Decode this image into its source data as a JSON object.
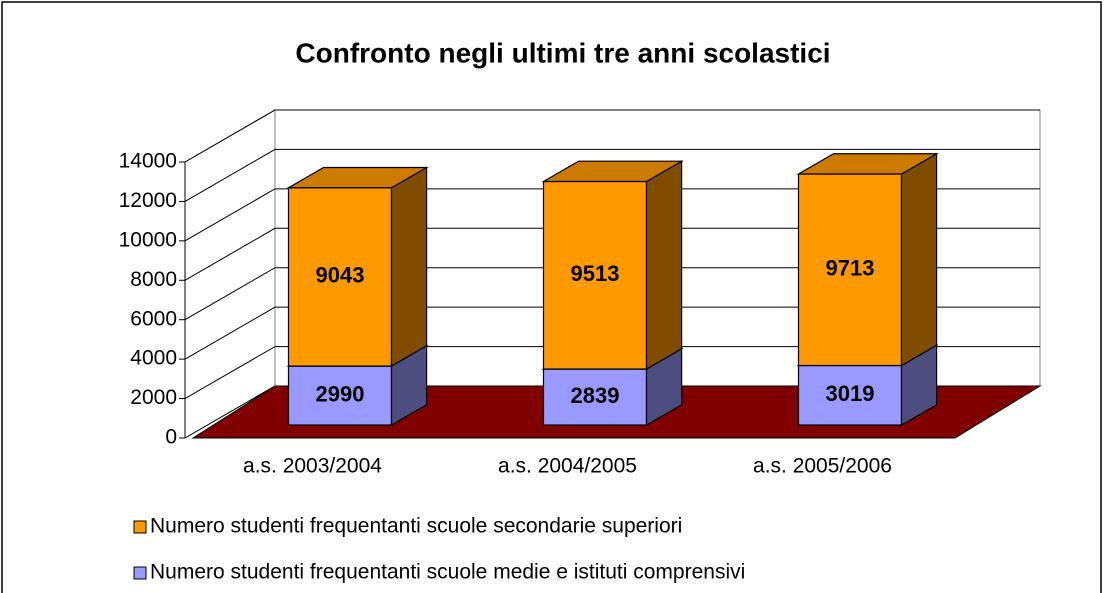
{
  "chart_data": {
    "type": "bar3d-stacked",
    "title": "Confronto negli ultimi tre anni scolastici",
    "categories": [
      "a.s. 2003/2004",
      "a.s. 2004/2005",
      "a.s. 2005/2006"
    ],
    "series": [
      {
        "name": "Numero studenti frequentanti scuole medie e istituti comprensivi",
        "color": "#9999ff",
        "values": [
          2990,
          2839,
          3019
        ]
      },
      {
        "name": "Numero studenti frequentanti scuole secondarie superiori",
        "color": "#ff9900",
        "values": [
          9043,
          9513,
          9713
        ]
      }
    ],
    "ylim": [
      0,
      14000
    ],
    "yticks": [
      0,
      2000,
      4000,
      6000,
      8000,
      10000,
      12000,
      14000
    ],
    "grid": true,
    "floor_color": "#800000"
  }
}
